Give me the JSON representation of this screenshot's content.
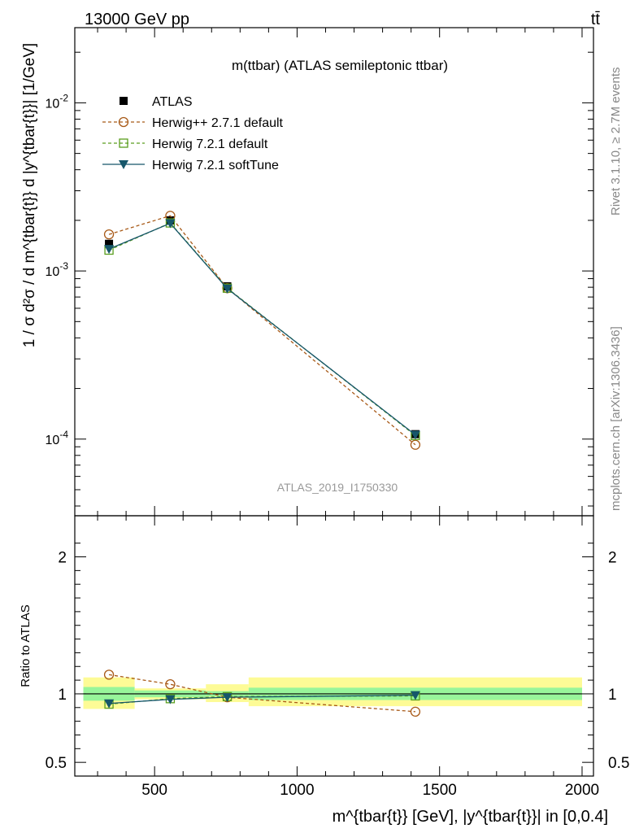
{
  "header": {
    "left_label": "13000 GeV pp",
    "right_label": "tt̄"
  },
  "side_text": {
    "rivet": "Rivet 3.1.10, ≥ 2.7M events",
    "mcplots": "mcplots.cern.ch [arXiv:1306.3436]"
  },
  "chart_data": [
    {
      "type": "line",
      "panel": "main",
      "title": "m(ttbar) (ATLAS semileptonic ttbar)",
      "watermark": "ATLAS_2019_I1750330",
      "ylabel": "1 / σ d²σ / d m^{tbar{t}} d |y^{tbar{t}}| [1/GeV]",
      "yscale": "log",
      "xlim": [
        220,
        2040
      ],
      "ylim": [
        3.5e-05,
        0.028
      ],
      "y_ticks": [
        {
          "value": 0.01,
          "label": "10^-2"
        },
        {
          "value": 0.001,
          "label": "10^-3"
        },
        {
          "value": 0.0001,
          "label": "10^-4"
        }
      ],
      "x": [
        340,
        555,
        755,
        1415
      ],
      "x_bins": [
        [
          250,
          430
        ],
        [
          430,
          680
        ],
        [
          680,
          830
        ],
        [
          830,
          2000
        ]
      ],
      "legend_position": "top-left",
      "series": [
        {
          "name": "ATLAS",
          "color": "#000000",
          "marker": "filled-square",
          "line": "none",
          "values": [
            0.00145,
            0.002,
            0.00081,
            0.000107
          ]
        },
        {
          "name": "Herwig++ 2.7.1 default",
          "color": "#a85a18",
          "marker": "open-circle",
          "line": "dashed",
          "values": [
            0.00165,
            0.00213,
            0.00079,
            9.25e-05
          ]
        },
        {
          "name": "Herwig 7.2.1 default",
          "color": "#5a9e1e",
          "marker": "open-square",
          "line": "dashed",
          "values": [
            0.00133,
            0.00193,
            0.00079,
            0.000105
          ]
        },
        {
          "name": "Herwig 7.2.1 softTune",
          "color": "#16566a",
          "marker": "filled-triangle-down",
          "line": "solid",
          "values": [
            0.00135,
            0.00192,
            0.000785,
            0.000106
          ]
        }
      ]
    },
    {
      "type": "line",
      "panel": "ratio",
      "ylabel": "Ratio to ATLAS",
      "xlabel": "m^{tbar{t}} [GeV], |y^{tbar{t}}| in [0,0.4]",
      "xlim": [
        220,
        2040
      ],
      "ylim": [
        0.4,
        2.3
      ],
      "x_ticks": [
        500,
        1000,
        1500,
        2000
      ],
      "y_ticks": [
        0.5,
        1,
        2
      ],
      "x": [
        340,
        555,
        755,
        1415
      ],
      "x_bins": [
        [
          250,
          430
        ],
        [
          430,
          680
        ],
        [
          680,
          830
        ],
        [
          830,
          2000
        ]
      ],
      "band_stat": [
        [
          0.95,
          1.05
        ],
        [
          0.975,
          1.025
        ],
        [
          0.98,
          1.02
        ],
        [
          0.955,
          1.045
        ]
      ],
      "band_total": [
        [
          0.89,
          1.12
        ],
        [
          0.96,
          1.04
        ],
        [
          0.94,
          1.07
        ],
        [
          0.91,
          1.12
        ]
      ],
      "series": [
        {
          "name": "Herwig++ 2.7.1 default",
          "values": [
            1.14,
            1.07,
            0.975,
            0.87
          ]
        },
        {
          "name": "Herwig 7.2.1 default",
          "values": [
            0.925,
            0.965,
            0.98,
            0.985
          ]
        },
        {
          "name": "Herwig 7.2.1 softTune",
          "values": [
            0.93,
            0.96,
            0.975,
            0.99
          ]
        }
      ]
    }
  ]
}
